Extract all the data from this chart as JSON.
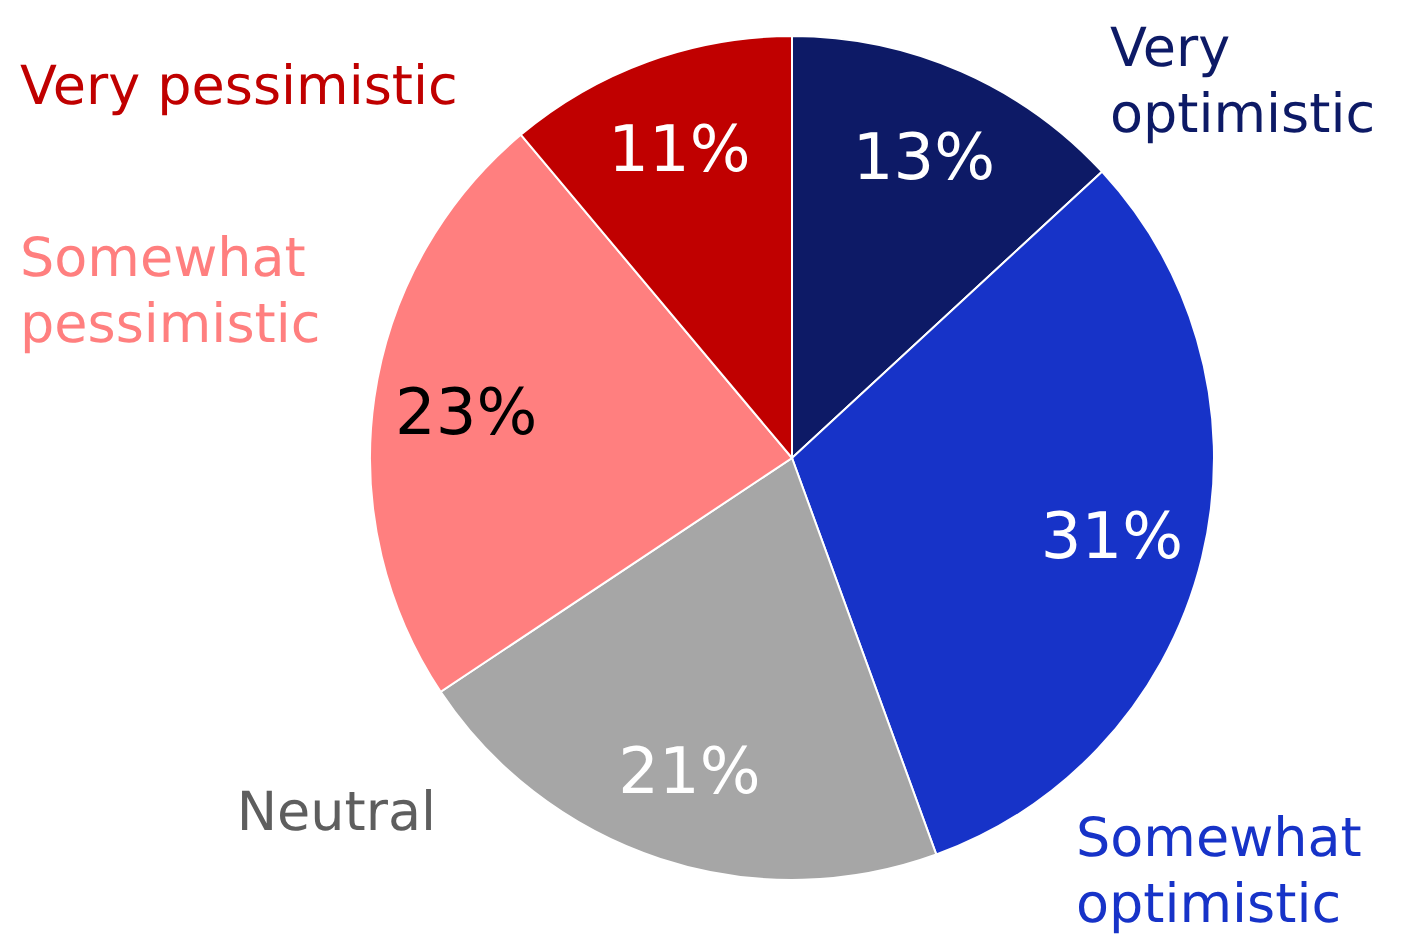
{
  "chart_data": {
    "type": "pie",
    "categories": [
      "Very optimistic",
      "Somewhat optimistic",
      "Neutral",
      "Somewhat pessimistic",
      "Very pessimistic"
    ],
    "values": [
      13,
      31,
      21,
      23,
      11
    ],
    "colors": [
      "#0d1a66",
      "#1733c8",
      "#a6a6a6",
      "#ff7f7f",
      "#c00000"
    ],
    "value_labels": [
      "13%",
      "31%",
      "21%",
      "23%",
      "11%"
    ]
  }
}
